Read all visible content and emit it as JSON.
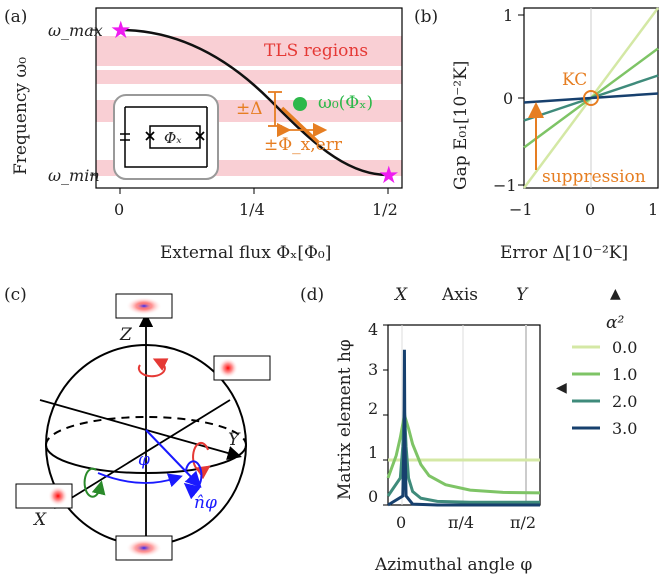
{
  "colors": {
    "tls": "#f9cfd4",
    "orange": "#e67e22",
    "green": "#2db84a",
    "magenta": "#ee1cf0",
    "s0": "#d4e8a5",
    "s1": "#7ec466",
    "s2": "#3f8b7b",
    "s3": "#17406e",
    "red": "#e53935",
    "blue": "#1a1aff"
  },
  "panel_a": {
    "label": "(a)",
    "ylabel": "Frequency ω₀",
    "xlabel": "External flux Φₓ[Φ₀]",
    "ytick_max": "ω_max",
    "ytick_min": "ω_min",
    "xticks": [
      "0",
      "1/4",
      "1/2"
    ],
    "tls_label": "TLS regions",
    "point_label": "ω₀(Φₓ)",
    "delta_label": "±Δ",
    "phi_err_label": "±Φ_x,err",
    "circuit_label": "Φₓ",
    "star_icon": "star-icon"
  },
  "panel_b": {
    "label": "(b)",
    "ylabel": "Gap E₀₁[10⁻²K]",
    "xlabel": "Error Δ[10⁻²K]",
    "xticks": [
      "−1",
      "0",
      "1"
    ],
    "yticks": [
      "1",
      "0",
      "−1"
    ],
    "kc_label": "KC",
    "suppression_label": "suppression"
  },
  "panel_c": {
    "label": "(c)",
    "axis_x": "X",
    "axis_y": "Y",
    "axis_z": "Z",
    "angle_label": "φ",
    "nphi_label": "n̂φ"
  },
  "panel_d": {
    "label": "(d)",
    "ylabel": "Matrix element hφ",
    "xlabel": "Azimuthal angle φ",
    "top_label_x": "X",
    "top_label_axis": "Axis",
    "top_label_y": "Y",
    "xticks": [
      "0",
      "π/4",
      "π/2"
    ],
    "yticks": [
      "0",
      "1",
      "2",
      "3",
      "4"
    ],
    "legend_title": "α²",
    "legend": [
      "0.0",
      "1.0",
      "2.0",
      "3.0"
    ]
  },
  "chart_data": [
    {
      "panel": "a",
      "type": "line",
      "title": "",
      "xlabel": "External flux Φₓ[Φ₀]",
      "ylabel": "Frequency ω₀",
      "xlim": [
        -0.02,
        0.52
      ],
      "ylim": [
        0,
        1
      ],
      "series": [
        {
          "name": "ω₀(Φₓ)",
          "x": [
            0,
            0.05,
            0.1,
            0.15,
            0.2,
            0.25,
            0.3,
            0.35,
            0.4,
            0.45,
            0.5
          ],
          "y": [
            1.0,
            0.99,
            0.96,
            0.9,
            0.8,
            0.69,
            0.55,
            0.41,
            0.26,
            0.12,
            0.02
          ]
        }
      ],
      "points": [
        {
          "name": "ω₀(Φₓ)",
          "x": 0.31,
          "y": 0.53
        }
      ],
      "stars": [
        {
          "x": 0,
          "y": 1.0
        },
        {
          "x": 0.5,
          "y": 0.02
        }
      ]
    },
    {
      "panel": "b",
      "type": "line",
      "xlabel": "Error Δ[10⁻²K]",
      "ylabel": "Gap E₀₁[10⁻²K]",
      "xlim": [
        -1,
        1
      ],
      "ylim": [
        -1,
        1
      ],
      "series": [
        {
          "name": "0.0",
          "slope": 1.0
        },
        {
          "name": "1.0",
          "slope": 0.55
        },
        {
          "name": "2.0",
          "slope": 0.25
        },
        {
          "name": "3.0",
          "slope": 0.05
        }
      ]
    },
    {
      "panel": "d",
      "type": "line",
      "xlabel": "Azimuthal angle φ",
      "ylabel": "Matrix element hφ",
      "xlim": [
        -0.2,
        1.65
      ],
      "ylim": [
        0,
        4
      ],
      "series": [
        {
          "name": "0.0",
          "x": [
            -0.2,
            1.65
          ],
          "y": [
            1.0,
            1.0
          ]
        },
        {
          "name": "1.0",
          "x": [
            -0.2,
            -0.1,
            -0.05,
            0,
            0.05,
            0.1,
            0.2,
            0.3,
            0.5,
            0.8,
            1.2,
            1.65
          ],
          "y": [
            0.6,
            1.1,
            1.5,
            2.0,
            1.7,
            1.35,
            0.9,
            0.65,
            0.45,
            0.33,
            0.28,
            0.27
          ]
        },
        {
          "name": "2.0",
          "x": [
            -0.2,
            -0.05,
            -0.02,
            0,
            0.02,
            0.05,
            0.1,
            0.2,
            0.4,
            0.8,
            1.2,
            1.65
          ],
          "y": [
            0.2,
            0.6,
            1.3,
            2.1,
            1.3,
            0.6,
            0.3,
            0.15,
            0.08,
            0.06,
            0.06,
            0.06
          ]
        },
        {
          "name": "3.0",
          "x": [
            -0.2,
            -0.02,
            -0.005,
            0,
            0.005,
            0.02,
            0.1,
            0.4,
            1.65
          ],
          "y": [
            0.0,
            0.2,
            1.5,
            3.45,
            1.5,
            0.2,
            0.02,
            0.0,
            0.0
          ]
        }
      ]
    }
  ]
}
